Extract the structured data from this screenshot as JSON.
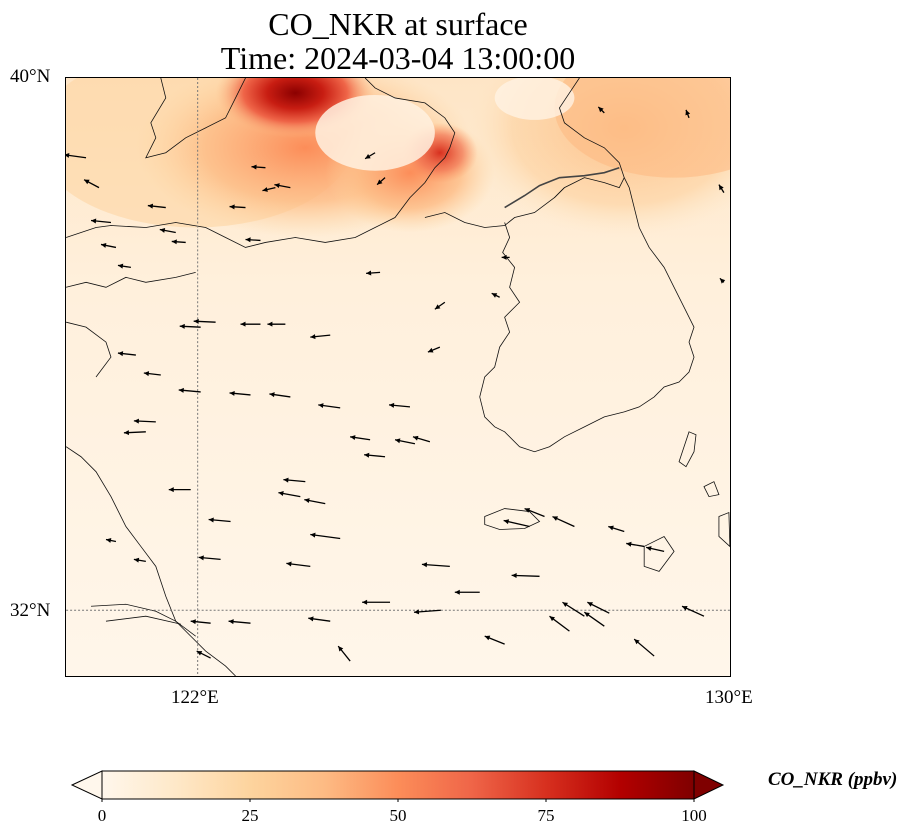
{
  "title": {
    "line1": "CO_NKR at surface",
    "line2": "Time: 2024-03-04 13:00:00"
  },
  "map": {
    "lat_labels": [
      "40°N",
      "32°N"
    ],
    "lon_labels": [
      "122°E",
      "130°E"
    ],
    "extent": {
      "lon_min": 120,
      "lon_max": 130,
      "lat_min": 31,
      "lat_max": 40
    },
    "gridlines": {
      "lon": [
        122
      ],
      "lat": [
        32
      ],
      "style": "dotted"
    },
    "field": "CO_NKR",
    "level": "surface",
    "features": [
      "coastlines",
      "wind vectors"
    ],
    "high_concentration_regions": [
      "Bohai Bay / Liaodong coast",
      "north-west Korean peninsula border"
    ]
  },
  "colorbar": {
    "label": "CO_NKR (ppbv)",
    "ticks": [
      "0",
      "25",
      "50",
      "75",
      "100"
    ],
    "min": 0,
    "max": 100,
    "colormap": "OrRd",
    "colors": [
      "#fff7ec",
      "#fee8c8",
      "#fdd49e",
      "#fdbb84",
      "#fc8d59",
      "#ef6548",
      "#d7301f",
      "#b30000",
      "#7f0000"
    ],
    "extend": "both"
  }
}
